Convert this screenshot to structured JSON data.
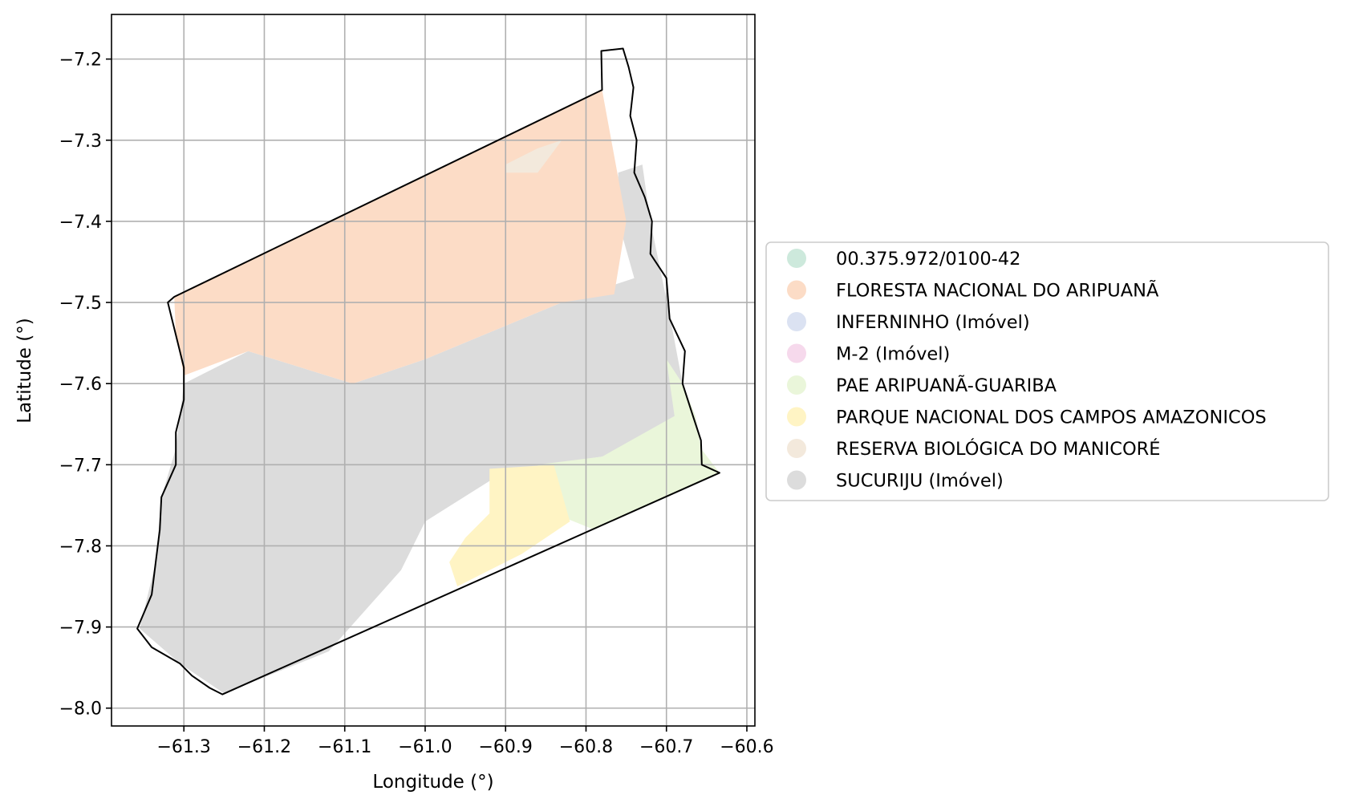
{
  "axes": {
    "xlabel": "Longitude (°)",
    "ylabel": "Latitude (°)",
    "xlim": [
      -61.39,
      -60.59
    ],
    "ylim": [
      -8.022,
      -7.145
    ],
    "xticks": [
      {
        "value": -61.3,
        "label": "−61.3"
      },
      {
        "value": -61.2,
        "label": "−61.2"
      },
      {
        "value": -61.1,
        "label": "−61.1"
      },
      {
        "value": -61.0,
        "label": "−61.0"
      },
      {
        "value": -60.9,
        "label": "−60.9"
      },
      {
        "value": -60.8,
        "label": "−60.8"
      },
      {
        "value": -60.7,
        "label": "−60.7"
      },
      {
        "value": -60.6,
        "label": "−60.6"
      }
    ],
    "yticks": [
      {
        "value": -7.2,
        "label": "−7.2"
      },
      {
        "value": -7.3,
        "label": "−7.3"
      },
      {
        "value": -7.4,
        "label": "−7.4"
      },
      {
        "value": -7.5,
        "label": "−7.5"
      },
      {
        "value": -7.6,
        "label": "−7.6"
      },
      {
        "value": -7.7,
        "label": "−7.7"
      },
      {
        "value": -7.8,
        "label": "−7.8"
      },
      {
        "value": -7.9,
        "label": "−7.9"
      },
      {
        "value": -8.0,
        "label": "−8.0"
      }
    ],
    "grid": true
  },
  "legend": {
    "placement": "center-right, outside axes",
    "items": [
      {
        "label": "00.375.972/0100-42",
        "color": "#cde9dc"
      },
      {
        "label": "FLORESTA NACIONAL DO ARIPUANÃ",
        "color": "#fcdcc6"
      },
      {
        "label": "INFERNINHO (Imóvel)",
        "color": "#dbe2f2"
      },
      {
        "label": "M-2 (Imóvel)",
        "color": "#f6d9ec"
      },
      {
        "label": "PAE ARIPUANÃ-GUARIBA",
        "color": "#eaf6da"
      },
      {
        "label": "PARQUE NACIONAL DOS CAMPOS AMAZONICOS",
        "color": "#fff4c4"
      },
      {
        "label": "RESERVA BIOLÓGICA DO MANICORÉ",
        "color": "#f3e9dc"
      },
      {
        "label": "SUCURIJU (Imóvel)",
        "color": "#dcdcdc"
      }
    ]
  },
  "chart_data": {
    "type": "map",
    "xlabel": "Longitude (°)",
    "ylabel": "Latitude (°)",
    "xlim": [
      -61.39,
      -60.59
    ],
    "ylim": [
      -8.022,
      -7.145
    ],
    "grid": true,
    "legend_position": "right",
    "boundary": {
      "name": "outline",
      "color": "#000000",
      "coords": [
        [
          -61.312,
          -7.493
        ],
        [
          -60.78,
          -7.238
        ],
        [
          -60.781,
          -7.19
        ],
        [
          -60.754,
          -7.187
        ],
        [
          -60.747,
          -7.21
        ],
        [
          -60.741,
          -7.235
        ],
        [
          -60.745,
          -7.27
        ],
        [
          -60.737,
          -7.3
        ],
        [
          -60.74,
          -7.34
        ],
        [
          -60.727,
          -7.37
        ],
        [
          -60.718,
          -7.4
        ],
        [
          -60.72,
          -7.44
        ],
        [
          -60.7,
          -7.47
        ],
        [
          -60.696,
          -7.52
        ],
        [
          -60.677,
          -7.56
        ],
        [
          -60.68,
          -7.6
        ],
        [
          -60.667,
          -7.64
        ],
        [
          -60.657,
          -7.67
        ],
        [
          -60.656,
          -7.7
        ],
        [
          -60.634,
          -7.71
        ],
        [
          -61.252,
          -7.983
        ],
        [
          -61.268,
          -7.975
        ],
        [
          -61.29,
          -7.96
        ],
        [
          -61.305,
          -7.945
        ],
        [
          -61.34,
          -7.925
        ],
        [
          -61.358,
          -7.902
        ],
        [
          -61.34,
          -7.86
        ],
        [
          -61.335,
          -7.82
        ],
        [
          -61.33,
          -7.78
        ],
        [
          -61.328,
          -7.74
        ],
        [
          -61.31,
          -7.7
        ],
        [
          -61.31,
          -7.66
        ],
        [
          -61.3,
          -7.62
        ],
        [
          -61.3,
          -7.58
        ],
        [
          -61.31,
          -7.54
        ],
        [
          -61.32,
          -7.5
        ],
        [
          -61.312,
          -7.493
        ]
      ]
    },
    "regions": [
      {
        "name": "SUCURIJU (Imóvel)",
        "color": "#dcdcdc",
        "coords": [
          [
            -61.3,
            -7.6
          ],
          [
            -61.22,
            -7.56
          ],
          [
            -61.09,
            -7.6
          ],
          [
            -61.0,
            -7.57
          ],
          [
            -60.83,
            -7.5
          ],
          [
            -60.74,
            -7.47
          ],
          [
            -60.76,
            -7.4
          ],
          [
            -60.76,
            -7.34
          ],
          [
            -60.73,
            -7.33
          ],
          [
            -60.72,
            -7.4
          ],
          [
            -60.695,
            -7.52
          ],
          [
            -60.68,
            -7.6
          ],
          [
            -60.664,
            -7.64
          ],
          [
            -60.658,
            -7.668
          ],
          [
            -60.78,
            -7.69
          ],
          [
            -60.85,
            -7.7
          ],
          [
            -60.92,
            -7.72
          ],
          [
            -61.0,
            -7.77
          ],
          [
            -61.03,
            -7.83
          ],
          [
            -61.12,
            -7.93
          ],
          [
            -61.25,
            -7.982
          ],
          [
            -61.305,
            -7.945
          ],
          [
            -61.355,
            -7.902
          ],
          [
            -61.335,
            -7.82
          ],
          [
            -61.328,
            -7.74
          ],
          [
            -61.31,
            -7.68
          ],
          [
            -61.3,
            -7.6
          ]
        ]
      },
      {
        "name": "FLORESTA NACIONAL DO ARIPUANÃ",
        "color": "#fcdcc6",
        "coords": [
          [
            -61.312,
            -7.493
          ],
          [
            -60.78,
            -7.238
          ],
          [
            -60.75,
            -7.4
          ],
          [
            -60.765,
            -7.49
          ],
          [
            -60.83,
            -7.5
          ],
          [
            -61.0,
            -7.57
          ],
          [
            -61.09,
            -7.6
          ],
          [
            -61.22,
            -7.56
          ],
          [
            -61.3,
            -7.59
          ],
          [
            -61.31,
            -7.54
          ],
          [
            -61.312,
            -7.493
          ]
        ]
      },
      {
        "name": "PAE ARIPUANÃ-GUARIBA",
        "color": "#eaf6da",
        "coords": [
          [
            -60.7,
            -7.57
          ],
          [
            -60.68,
            -7.6
          ],
          [
            -60.664,
            -7.64
          ],
          [
            -60.657,
            -7.68
          ],
          [
            -60.634,
            -7.71
          ],
          [
            -60.79,
            -7.78
          ],
          [
            -60.84,
            -7.76
          ],
          [
            -60.86,
            -7.7
          ],
          [
            -60.78,
            -7.69
          ],
          [
            -60.69,
            -7.64
          ],
          [
            -60.7,
            -7.57
          ]
        ]
      },
      {
        "name": "PARQUE NACIONAL DOS CAMPOS AMAZONICOS",
        "color": "#fff4c4",
        "coords": [
          [
            -60.92,
            -7.705
          ],
          [
            -60.84,
            -7.7
          ],
          [
            -60.82,
            -7.77
          ],
          [
            -60.88,
            -7.81
          ],
          [
            -60.96,
            -7.85
          ],
          [
            -60.97,
            -7.82
          ],
          [
            -60.95,
            -7.79
          ],
          [
            -60.92,
            -7.76
          ],
          [
            -60.92,
            -7.705
          ]
        ]
      },
      {
        "name": "RESERVA BIOLÓGICA DO MANICORÉ",
        "color": "#f3e9dc",
        "coords": [
          [
            -60.9,
            -7.33
          ],
          [
            -60.86,
            -7.31
          ],
          [
            -60.83,
            -7.3
          ],
          [
            -60.86,
            -7.34
          ],
          [
            -60.9,
            -7.34
          ],
          [
            -60.9,
            -7.33
          ]
        ]
      }
    ]
  }
}
